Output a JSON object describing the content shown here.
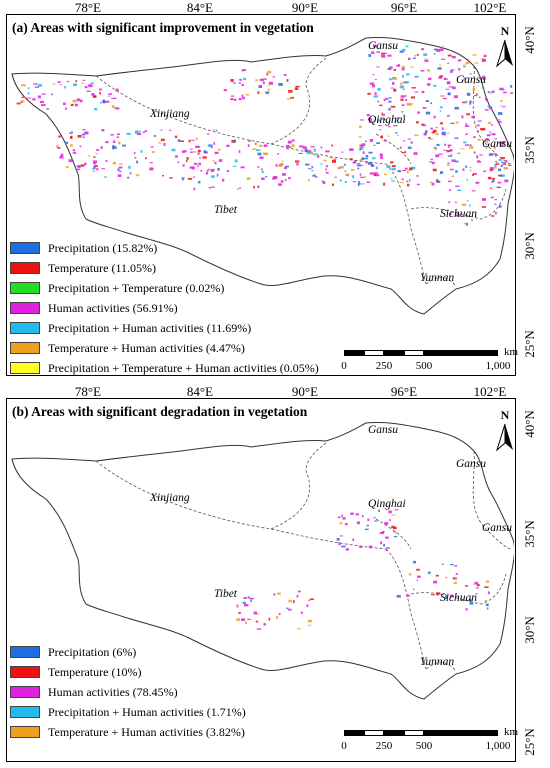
{
  "panels": [
    {
      "title": "(a) Areas with significant improvement in vegetation",
      "lon_labels": [
        "78°E",
        "84°E",
        "90°E",
        "96°E",
        "102°E"
      ],
      "lat_labels": [
        "40°N",
        "35°N",
        "30°N",
        "25°N"
      ],
      "provinces": [
        "Gansu",
        "Gansu",
        "Xinjiang",
        "Qinghai",
        "Gansu",
        "Tibet",
        "Sichuan",
        "Yunnan"
      ],
      "north_label": "N",
      "scalebar": {
        "ticks": [
          "0",
          "250",
          "500",
          "1,000"
        ],
        "unit": "km"
      },
      "legend": [
        {
          "label": "Precipitation (15.82%)",
          "color": "#1f6fe0"
        },
        {
          "label": "Temperature (11.05%)",
          "color": "#ee1111"
        },
        {
          "label": "Precipitation + Temperature (0.02%)",
          "color": "#22dd22"
        },
        {
          "label": "Human activities (56.91%)",
          "color": "#dd22dd"
        },
        {
          "label": "Precipitation + Human activities (11.69%)",
          "color": "#22bbee"
        },
        {
          "label": "Temperature + Human activities (4.47%)",
          "color": "#f0a020"
        },
        {
          "label": "Precipitation + Temperature + Human activities (0.05%)",
          "color": "#ffff22"
        }
      ]
    },
    {
      "title": "(b) Areas with significant degradation in vegetation",
      "lon_labels": [
        "78°E",
        "84°E",
        "90°E",
        "96°E",
        "102°E"
      ],
      "lat_labels": [
        "40°N",
        "35°N",
        "30°N",
        "25°N"
      ],
      "provinces": [
        "Gansu",
        "Gansu",
        "Xinjiang",
        "Qinghai",
        "Gansu",
        "Tibet",
        "Sichuan",
        "Yunnan"
      ],
      "north_label": "N",
      "scalebar": {
        "ticks": [
          "0",
          "250",
          "500",
          "1,000"
        ],
        "unit": "km"
      },
      "legend": [
        {
          "label": "Precipitation (6%)",
          "color": "#1f6fe0"
        },
        {
          "label": "Temperature (10%)",
          "color": "#ee1111"
        },
        {
          "label": "Human activities (78.45%)",
          "color": "#dd22dd"
        },
        {
          "label": "Precipitation + Human activities (1.71%)",
          "color": "#22bbee"
        },
        {
          "label": "Temperature + Human activities (3.82%)",
          "color": "#f0a020"
        }
      ]
    }
  ]
}
